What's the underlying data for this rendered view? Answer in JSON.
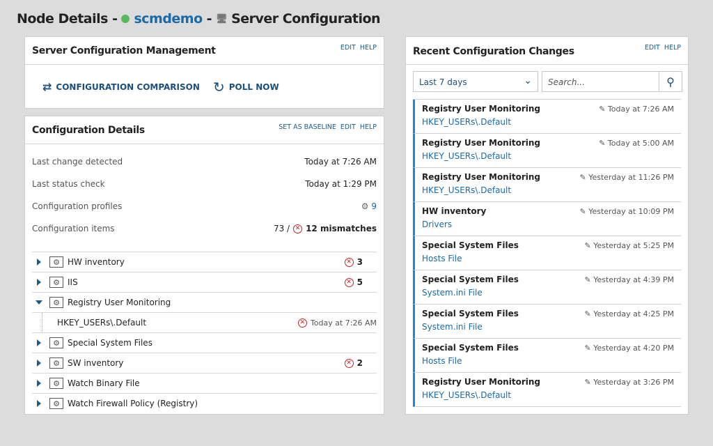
{
  "header": {
    "prefix": "Node Details -",
    "node": "scmdemo",
    "sep": "-",
    "page": "Server Configuration"
  },
  "scm": {
    "title": "Server Configuration Management",
    "edit": "EDIT",
    "help": "HELP",
    "compare": "CONFIGURATION COMPARISON",
    "poll": "POLL NOW"
  },
  "details": {
    "title": "Configuration Details",
    "baseline": "SET AS BASELINE",
    "edit": "EDIT",
    "help": "HELP",
    "rows": [
      {
        "k": "Last change detected",
        "v": "Today at 7:26 AM"
      },
      {
        "k": "Last status check",
        "v": "Today at 1:29 PM"
      },
      {
        "k": "Configuration profiles",
        "v": "9"
      },
      {
        "k": "Configuration items",
        "v": "73 /",
        "mism": "12 mismatches"
      }
    ],
    "tree": [
      {
        "name": "HW inventory",
        "count": "3",
        "state": "collapsed"
      },
      {
        "name": "IIS",
        "count": "5",
        "state": "collapsed"
      },
      {
        "name": "Registry User Monitoring",
        "count": "",
        "state": "expanded"
      },
      {
        "name": "HKEY_USERs\\.Default",
        "child": true,
        "time": "Today at 7:26 AM"
      },
      {
        "name": "Special System Files",
        "count": "",
        "state": "collapsed"
      },
      {
        "name": "SW inventory",
        "count": "2",
        "state": "collapsed"
      },
      {
        "name": "Watch Binary File",
        "count": "",
        "state": "collapsed"
      },
      {
        "name": "Watch Firewall Policy (Registry)",
        "count": "",
        "state": "collapsed"
      }
    ]
  },
  "recent": {
    "title": "Recent Configuration Changes",
    "edit": "EDIT",
    "help": "HELP",
    "range": "Last 7 days",
    "search_placeholder": "Search...",
    "items": [
      {
        "n": "Registry User Monitoring",
        "s": "HKEY_USERs\\.Default",
        "t": "Today at 7:26 AM"
      },
      {
        "n": "Registry User Monitoring",
        "s": "HKEY_USERs\\.Default",
        "t": "Today at 5:00 AM"
      },
      {
        "n": "Registry User Monitoring",
        "s": "HKEY_USERs\\.Default",
        "t": "Yesterday at 11:26 PM"
      },
      {
        "n": "HW inventory",
        "s": "Drivers",
        "t": "Yesterday at 10:09 PM"
      },
      {
        "n": "Special System Files",
        "s": "Hosts File",
        "t": "Yesterday at 5:25 PM"
      },
      {
        "n": "Special System Files",
        "s": "System.ini File",
        "t": "Yesterday at 4:39 PM"
      },
      {
        "n": "Special System Files",
        "s": "System.ini File",
        "t": "Yesterday at 4:25 PM"
      },
      {
        "n": "Special System Files",
        "s": "Hosts File",
        "t": "Yesterday at 4:20 PM"
      },
      {
        "n": "Registry User Monitoring",
        "s": "HKEY_USERs\\.Default",
        "t": "Yesterday at 3:26 PM"
      }
    ]
  }
}
